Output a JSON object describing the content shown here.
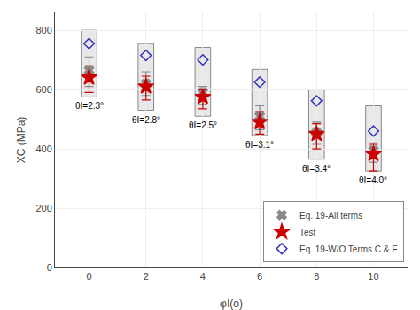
{
  "chart_data": {
    "type": "scatter",
    "x_label": "φI(o)",
    "y_label": "XC (MPa)",
    "x": [
      0,
      2,
      4,
      6,
      8,
      10
    ],
    "series": [
      {
        "name": "Eq. 19-All terms",
        "color": "#888888",
        "marker": "x",
        "values": [
          665,
          620,
          590,
          510,
          455,
          395
        ],
        "low": [
          610,
          580,
          550,
          465,
          415,
          355
        ],
        "high": [
          710,
          660,
          610,
          545,
          490,
          420
        ]
      },
      {
        "name": "Test",
        "color": "#cc0000",
        "marker": "star",
        "values": [
          640,
          610,
          575,
          490,
          450,
          382
        ],
        "low": [
          590,
          565,
          535,
          450,
          400,
          325
        ],
        "high": [
          680,
          645,
          600,
          525,
          485,
          415
        ]
      },
      {
        "name": "Eq. 19-W/O Terms C & E",
        "color": "#3333bb",
        "marker": "diamond-open",
        "values": [
          755,
          715,
          700,
          625,
          562,
          460
        ]
      }
    ],
    "boxes": {
      "low": [
        575,
        530,
        510,
        445,
        365,
        325
      ],
      "high": [
        800,
        755,
        742,
        668,
        600,
        545
      ],
      "color": "#e8e8e8",
      "edge_color": "#888888"
    },
    "annotations": [
      {
        "text": "θI=2.3°",
        "x": 0
      },
      {
        "text": "θI=2.8°",
        "x": 2
      },
      {
        "text": "θI=2.5°",
        "x": 4
      },
      {
        "text": "θI=3.1°",
        "x": 6
      },
      {
        "text": "θI=3.4°",
        "x": 8
      },
      {
        "text": "θI=4.0°",
        "x": 10
      }
    ],
    "xlim": [
      -1.2,
      11.2
    ],
    "xticks": [
      0,
      2,
      4,
      6,
      8,
      10
    ],
    "ylim": [
      0,
      860
    ],
    "yticks": [
      0,
      200,
      400,
      600,
      800
    ],
    "grid": true,
    "legend": "lower right"
  }
}
